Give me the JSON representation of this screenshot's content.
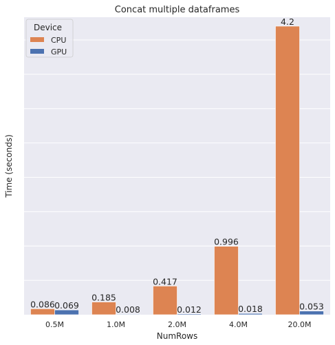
{
  "chart_data": {
    "type": "bar",
    "title": "Concat multiple dataframes",
    "xlabel": "NumRows",
    "ylabel": "Time (seconds)",
    "categories": [
      "0.5M",
      "1.0M",
      "2.0M",
      "4.0M",
      "20.0M"
    ],
    "series": [
      {
        "name": "CPU",
        "color": "#dd8452",
        "values": [
          0.086,
          0.185,
          0.417,
          0.996,
          4.2
        ],
        "labels": [
          "0.086",
          "0.185",
          "0.417",
          "0.996",
          "4.2"
        ]
      },
      {
        "name": "GPU",
        "color": "#4c72b0",
        "values": [
          0.069,
          0.008,
          0.012,
          0.018,
          0.053
        ],
        "labels": [
          "0.069",
          "0.008",
          "0.012",
          "0.018",
          "0.053"
        ]
      }
    ],
    "ylim": [
      0,
      4.2
    ],
    "y_ticks_visible": false,
    "grid": true,
    "legend": {
      "title": "Device",
      "placement": "top-left"
    },
    "background_color": "#eaeaf2",
    "grid_color": "#ffffff"
  }
}
